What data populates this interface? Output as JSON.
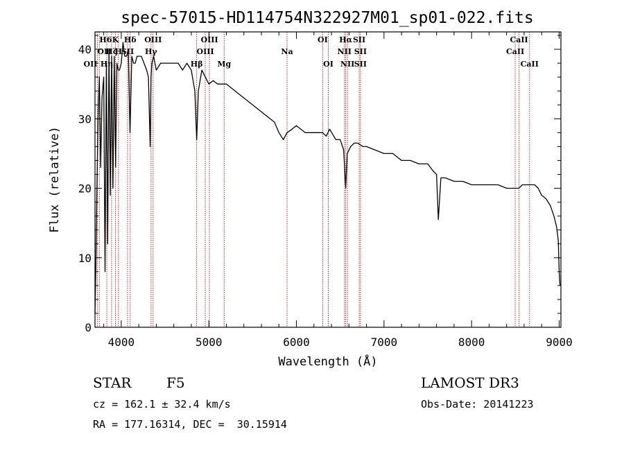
{
  "chart_data": {
    "type": "line",
    "title": "spec-57015-HD114754N322927M01_sp01-022.fits",
    "xlabel": "Wavelength (Å)",
    "ylabel": "Flux (relative)",
    "xlim": [
      3700,
      9020
    ],
    "ylim": [
      0,
      42.5
    ],
    "x_ticks": [
      4000,
      5000,
      6000,
      7000,
      8000,
      9000
    ],
    "y_ticks": [
      0,
      10,
      20,
      30,
      40
    ],
    "series": [
      {
        "name": "flux",
        "x": [
          3700,
          3710,
          3720,
          3735,
          3750,
          3765,
          3780,
          3800,
          3815,
          3830,
          3845,
          3860,
          3875,
          3890,
          3905,
          3920,
          3935,
          3950,
          3965,
          3980,
          4000,
          4020,
          4040,
          4060,
          4080,
          4100,
          4120,
          4140,
          4160,
          4180,
          4200,
          4230,
          4260,
          4290,
          4310,
          4330,
          4340,
          4350,
          4370,
          4400,
          4450,
          4500,
          4550,
          4600,
          4650,
          4700,
          4750,
          4800,
          4840,
          4861,
          4880,
          4920,
          4960,
          5000,
          5050,
          5100,
          5150,
          5200,
          5300,
          5400,
          5500,
          5600,
          5700,
          5750,
          5800,
          5850,
          5893,
          5950,
          6000,
          6050,
          6100,
          6150,
          6200,
          6250,
          6300,
          6340,
          6380,
          6450,
          6500,
          6540,
          6563,
          6580,
          6620,
          6660,
          6700,
          6760,
          6800,
          6900,
          7000,
          7100,
          7200,
          7300,
          7400,
          7500,
          7560,
          7600,
          7620,
          7650,
          7700,
          7800,
          7900,
          8000,
          8100,
          8200,
          8300,
          8400,
          8500,
          8540,
          8580,
          8620,
          8680,
          8720,
          8760,
          8800,
          8850,
          8900,
          8940,
          8970,
          8990,
          9000,
          9010
        ],
        "values": [
          2,
          9,
          18,
          30,
          36,
          23,
          33,
          36,
          8,
          38,
          12,
          40,
          19,
          39,
          20,
          39,
          23,
          38,
          37,
          37,
          38,
          41,
          39,
          39,
          40,
          28,
          39,
          38,
          38,
          39,
          39,
          39,
          38,
          37,
          36,
          26,
          36,
          38,
          39,
          37,
          38,
          38,
          38,
          38,
          38,
          37,
          38,
          37,
          34,
          27,
          34,
          37,
          36,
          35,
          35.5,
          35,
          35,
          35,
          34,
          33,
          32,
          31,
          30,
          29.5,
          28,
          27,
          28,
          28.5,
          29,
          28.5,
          28,
          28,
          28,
          28,
          28,
          27.5,
          28.5,
          27,
          27,
          25.5,
          20,
          25,
          26,
          26.5,
          26.5,
          26,
          26,
          25.5,
          25,
          25,
          24,
          24,
          23.5,
          23.5,
          22.5,
          22,
          15.5,
          21.5,
          21.5,
          21,
          21,
          20.5,
          20.5,
          20.5,
          20.5,
          20,
          20,
          20,
          20.5,
          20.5,
          20.5,
          20.5,
          20,
          19,
          18.5,
          17.5,
          16,
          14.5,
          12.5,
          8,
          6
        ]
      }
    ],
    "spectral_lines": [
      {
        "label": "H6",
        "wavelength": 3750,
        "row": 0,
        "align": "start"
      },
      {
        "label": "OII",
        "wavelength": 3727,
        "row": 1,
        "align": "start"
      },
      {
        "label": "OII",
        "wavelength": 3727,
        "row": 2,
        "align": "end"
      },
      {
        "label": "Hη",
        "wavelength": 3835,
        "row": 2,
        "align": "middle"
      },
      {
        "label": "Hζ",
        "wavelength": 3889,
        "row": 1,
        "align": "middle"
      },
      {
        "label": "K",
        "wavelength": 3934,
        "row": 0,
        "align": "middle"
      },
      {
        "label": "H",
        "wavelength": 3968,
        "row": 1,
        "align": "middle"
      },
      {
        "label": "Hδ",
        "wavelength": 4102,
        "row": 0,
        "align": "middle"
      },
      {
        "label": "SII",
        "wavelength": 4072,
        "row": 1,
        "align": "middle"
      },
      {
        "label": "OIII",
        "wavelength": 4363,
        "row": 0,
        "align": "middle"
      },
      {
        "label": "Hγ",
        "wavelength": 4340,
        "row": 1,
        "align": "middle"
      },
      {
        "label": "OIII",
        "wavelength": 5007,
        "row": 0,
        "align": "middle"
      },
      {
        "label": "OIII",
        "wavelength": 4959,
        "row": 1,
        "align": "middle"
      },
      {
        "label": "Hβ",
        "wavelength": 4861,
        "row": 2,
        "align": "middle"
      },
      {
        "label": "Mg",
        "wavelength": 5175,
        "row": 2,
        "align": "middle"
      },
      {
        "label": "Na",
        "wavelength": 5893,
        "row": 1,
        "align": "middle"
      },
      {
        "label": "OI",
        "wavelength": 6300,
        "row": 0,
        "align": "middle"
      },
      {
        "label": "OI",
        "wavelength": 6364,
        "row": 2,
        "align": "middle"
      },
      {
        "label": "Hα",
        "wavelength": 6563,
        "row": 0,
        "align": "middle"
      },
      {
        "label": "SII",
        "wavelength": 6717,
        "row": 0,
        "align": "middle"
      },
      {
        "label": "NII",
        "wavelength": 6548,
        "row": 1,
        "align": "middle"
      },
      {
        "label": "NII",
        "wavelength": 6583,
        "row": 2,
        "align": "middle"
      },
      {
        "label": "SII",
        "wavelength": 6731,
        "row": 1,
        "align": "middle"
      },
      {
        "label": "SII",
        "wavelength": 6731,
        "row": 2,
        "align": "middle"
      },
      {
        "label": "CaII",
        "wavelength": 8542,
        "row": 0,
        "align": "middle"
      },
      {
        "label": "CaII",
        "wavelength": 8498,
        "row": 1,
        "align": "middle"
      },
      {
        "label": "CaII",
        "wavelength": 8662,
        "row": 2,
        "align": "middle"
      }
    ]
  },
  "info": {
    "object_class": "STAR",
    "subclass": "F5",
    "survey": "LAMOST DR3",
    "redshift": "cz = 162.1 ± 32.4 km/s",
    "obs_date": "Obs-Date: 20141223",
    "coords": "RA = 177.16314, DEC =  30.15914"
  },
  "colors": {
    "spectrum": "#000000",
    "line_markers": "#b03030",
    "axes": "#000000",
    "background": "#ffffff"
  }
}
